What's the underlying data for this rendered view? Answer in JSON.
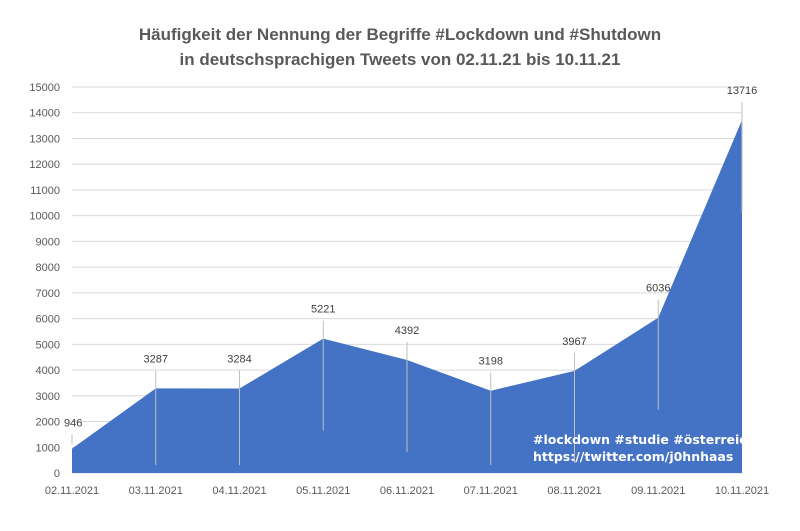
{
  "chart_data": {
    "type": "area",
    "title": "Häufigkeit der Nennung der Begriffe #Lockdown und #Shutdown",
    "subtitle": "in deutschsprachigen Tweets von 02.11.21 bis 10.11.21",
    "xlabel": "",
    "ylabel": "",
    "categories": [
      "02.11.2021",
      "03.11.2021",
      "04.11.2021",
      "05.11.2021",
      "06.11.2021",
      "07.11.2021",
      "08.11.2021",
      "09.11.2021",
      "10.11.2021"
    ],
    "values": [
      946,
      3287,
      3284,
      5221,
      4392,
      3198,
      3967,
      6036,
      13716
    ],
    "data_labels": [
      "946",
      "3287",
      "3284",
      "5221",
      "4392",
      "3198",
      "3967",
      "6036",
      "13716"
    ],
    "ylim": [
      0,
      15000
    ],
    "ytick_step": 1000,
    "yticks": [
      "0",
      "1000",
      "2000",
      "3000",
      "4000",
      "5000",
      "6000",
      "7000",
      "8000",
      "9000",
      "10000",
      "11000",
      "12000",
      "13000",
      "14000",
      "15000"
    ],
    "grid": true,
    "legend": "none",
    "colors": {
      "area": "#4472c4",
      "grid": "#d9d9d9",
      "text": "#595959"
    }
  },
  "watermark": {
    "line1": "#lockdown #studie #österreich",
    "line2": "https://twitter.com/j0hnhaas"
  }
}
